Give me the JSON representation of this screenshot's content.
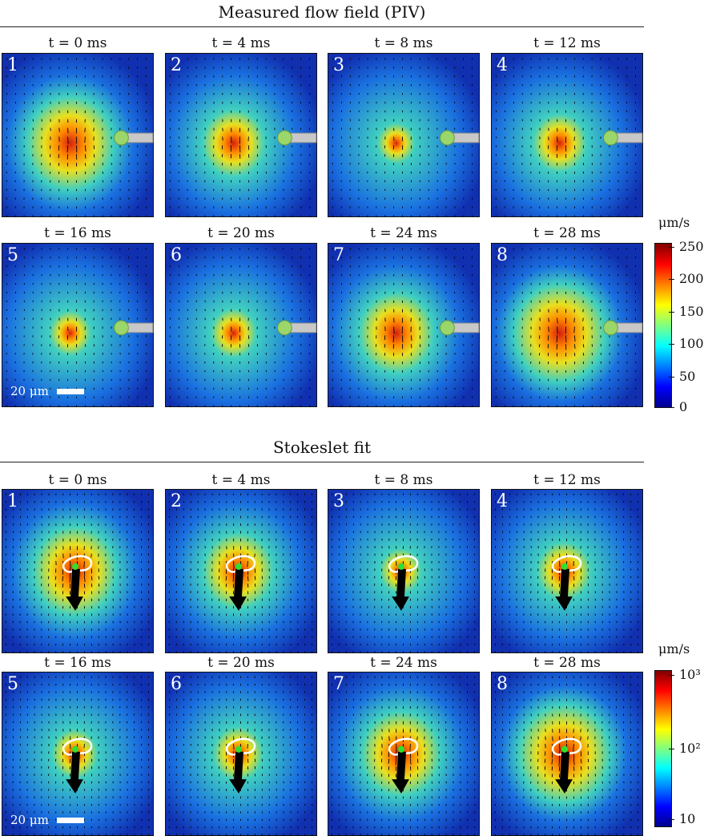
{
  "top": {
    "title": "Measured flow field (PIV)",
    "panels": [
      {
        "num": "1",
        "time": "t = 0 ms",
        "strength": 0.95
      },
      {
        "num": "2",
        "time": "t = 4 ms",
        "strength": 0.65
      },
      {
        "num": "3",
        "time": "t = 8 ms",
        "strength": 0.35
      },
      {
        "num": "4",
        "time": "t = 12 ms",
        "strength": 0.55
      },
      {
        "num": "5",
        "time": "t = 16 ms",
        "strength": 0.4
      },
      {
        "num": "6",
        "time": "t = 20 ms",
        "strength": 0.45
      },
      {
        "num": "7",
        "time": "t = 24 ms",
        "strength": 0.8
      },
      {
        "num": "8",
        "time": "t = 28 ms",
        "strength": 1.0
      }
    ],
    "scale_label": "20 μm",
    "colorbar": {
      "unit": "μm/s",
      "ticks": [
        "250",
        "200",
        "150",
        "100",
        "50",
        "0"
      ],
      "scale": "linear"
    }
  },
  "bottom": {
    "title": "Stokeslet fit",
    "panels": [
      {
        "num": "1",
        "time": "t = 0 ms",
        "strength": 0.9
      },
      {
        "num": "2",
        "time": "t = 4 ms",
        "strength": 0.75
      },
      {
        "num": "3",
        "time": "t = 8 ms",
        "strength": 0.4
      },
      {
        "num": "4",
        "time": "t = 12 ms",
        "strength": 0.55
      },
      {
        "num": "5",
        "time": "t = 16 ms",
        "strength": 0.45
      },
      {
        "num": "6",
        "time": "t = 20 ms",
        "strength": 0.5
      },
      {
        "num": "7",
        "time": "t = 24 ms",
        "strength": 0.85
      },
      {
        "num": "8",
        "time": "t = 28 ms",
        "strength": 1.0
      }
    ],
    "scale_label": "20 μm",
    "colorbar": {
      "unit": "μm/s",
      "ticks": [
        "10³",
        "10²",
        "10"
      ],
      "scale": "log"
    }
  }
}
